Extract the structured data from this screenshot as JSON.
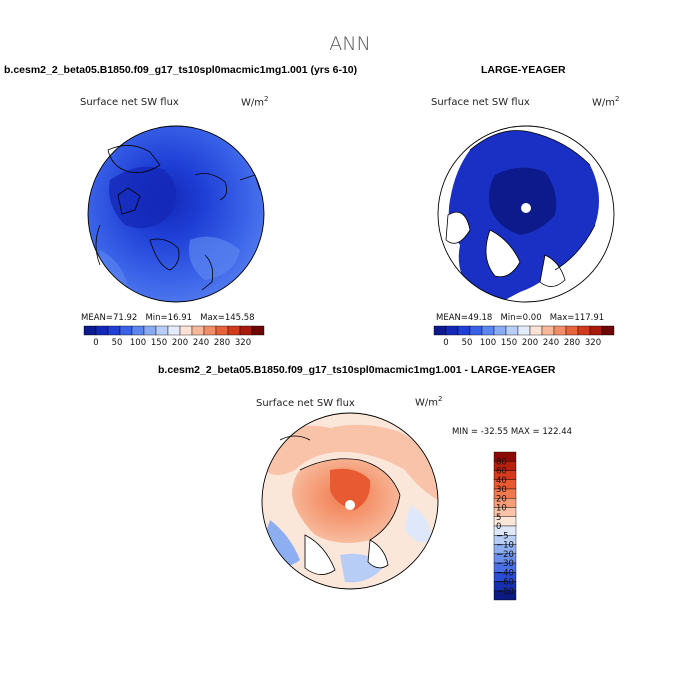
{
  "page_title": "ANN",
  "chart_data": [
    {
      "type": "polar_map",
      "title": "b.cesm2_2_beta05.B1850.f09_g17_ts10spl0macmic1mg1.001 (yrs 6-10)",
      "variable": "Surface net SW flux",
      "units": "W/m",
      "units_exp": "2",
      "stats": {
        "mean_label": "MEAN=",
        "mean": "71.92",
        "min_label": "Min=",
        "min": "16.91",
        "max_label": "Max=",
        "max": "145.58"
      },
      "colorbar": {
        "orientation": "horizontal",
        "tick_labels": [
          "0",
          "50",
          "100",
          "150",
          "200",
          "240",
          "280",
          "320"
        ],
        "colors": [
          "#0d1a8c",
          "#1428b8",
          "#1f3fd6",
          "#3a62e8",
          "#5b86f0",
          "#8aaaf4",
          "#b7cdf8",
          "#e3ecfb",
          "#fbe2d6",
          "#f6b79a",
          "#f08c66",
          "#e5623a",
          "#cf3b1c",
          "#a81a0c",
          "#6e0606"
        ]
      }
    },
    {
      "type": "polar_map",
      "title": "LARGE-YEAGER",
      "variable": "Surface net SW flux",
      "units": "W/m",
      "units_exp": "2",
      "stats": {
        "mean_label": "MEAN=",
        "mean": "49.18",
        "min_label": "Min=",
        "min": "0.00",
        "max_label": "Max=",
        "max": "117.91"
      },
      "colorbar": {
        "orientation": "horizontal",
        "tick_labels": [
          "0",
          "50",
          "100",
          "150",
          "200",
          "240",
          "280",
          "320"
        ],
        "colors": [
          "#0d1a8c",
          "#1428b8",
          "#1f3fd6",
          "#3a62e8",
          "#5b86f0",
          "#8aaaf4",
          "#b7cdf8",
          "#e3ecfb",
          "#fbe2d6",
          "#f6b79a",
          "#f08c66",
          "#e5623a",
          "#cf3b1c",
          "#a81a0c",
          "#6e0606"
        ]
      }
    },
    {
      "type": "polar_map_difference",
      "title": "b.cesm2_2_beta05.B1850.f09_g17_ts10spl0macmic1mg1.001 - LARGE-YEAGER",
      "variable": "Surface net SW flux",
      "units": "W/m",
      "units_exp": "2",
      "stats_text": "MIN = -32.55 MAX = 122.44",
      "min": -32.55,
      "max": 122.44,
      "colorbar": {
        "orientation": "vertical",
        "tick_labels": [
          "80",
          "60",
          "40",
          "30",
          "20",
          "10",
          "5",
          "0",
          "−5",
          "−10",
          "−20",
          "−30",
          "−40",
          "−60",
          "−80"
        ],
        "colors": [
          "#8c0a05",
          "#b8200e",
          "#d63a1c",
          "#e85a32",
          "#f07a4e",
          "#f59d78",
          "#f8c3a8",
          "#fbe6da",
          "#dfe8fb",
          "#b8cdf6",
          "#8eaef2",
          "#6a8eec",
          "#4a6ee4",
          "#2a4cd2",
          "#1530ae",
          "#0a1a80"
        ]
      }
    }
  ]
}
